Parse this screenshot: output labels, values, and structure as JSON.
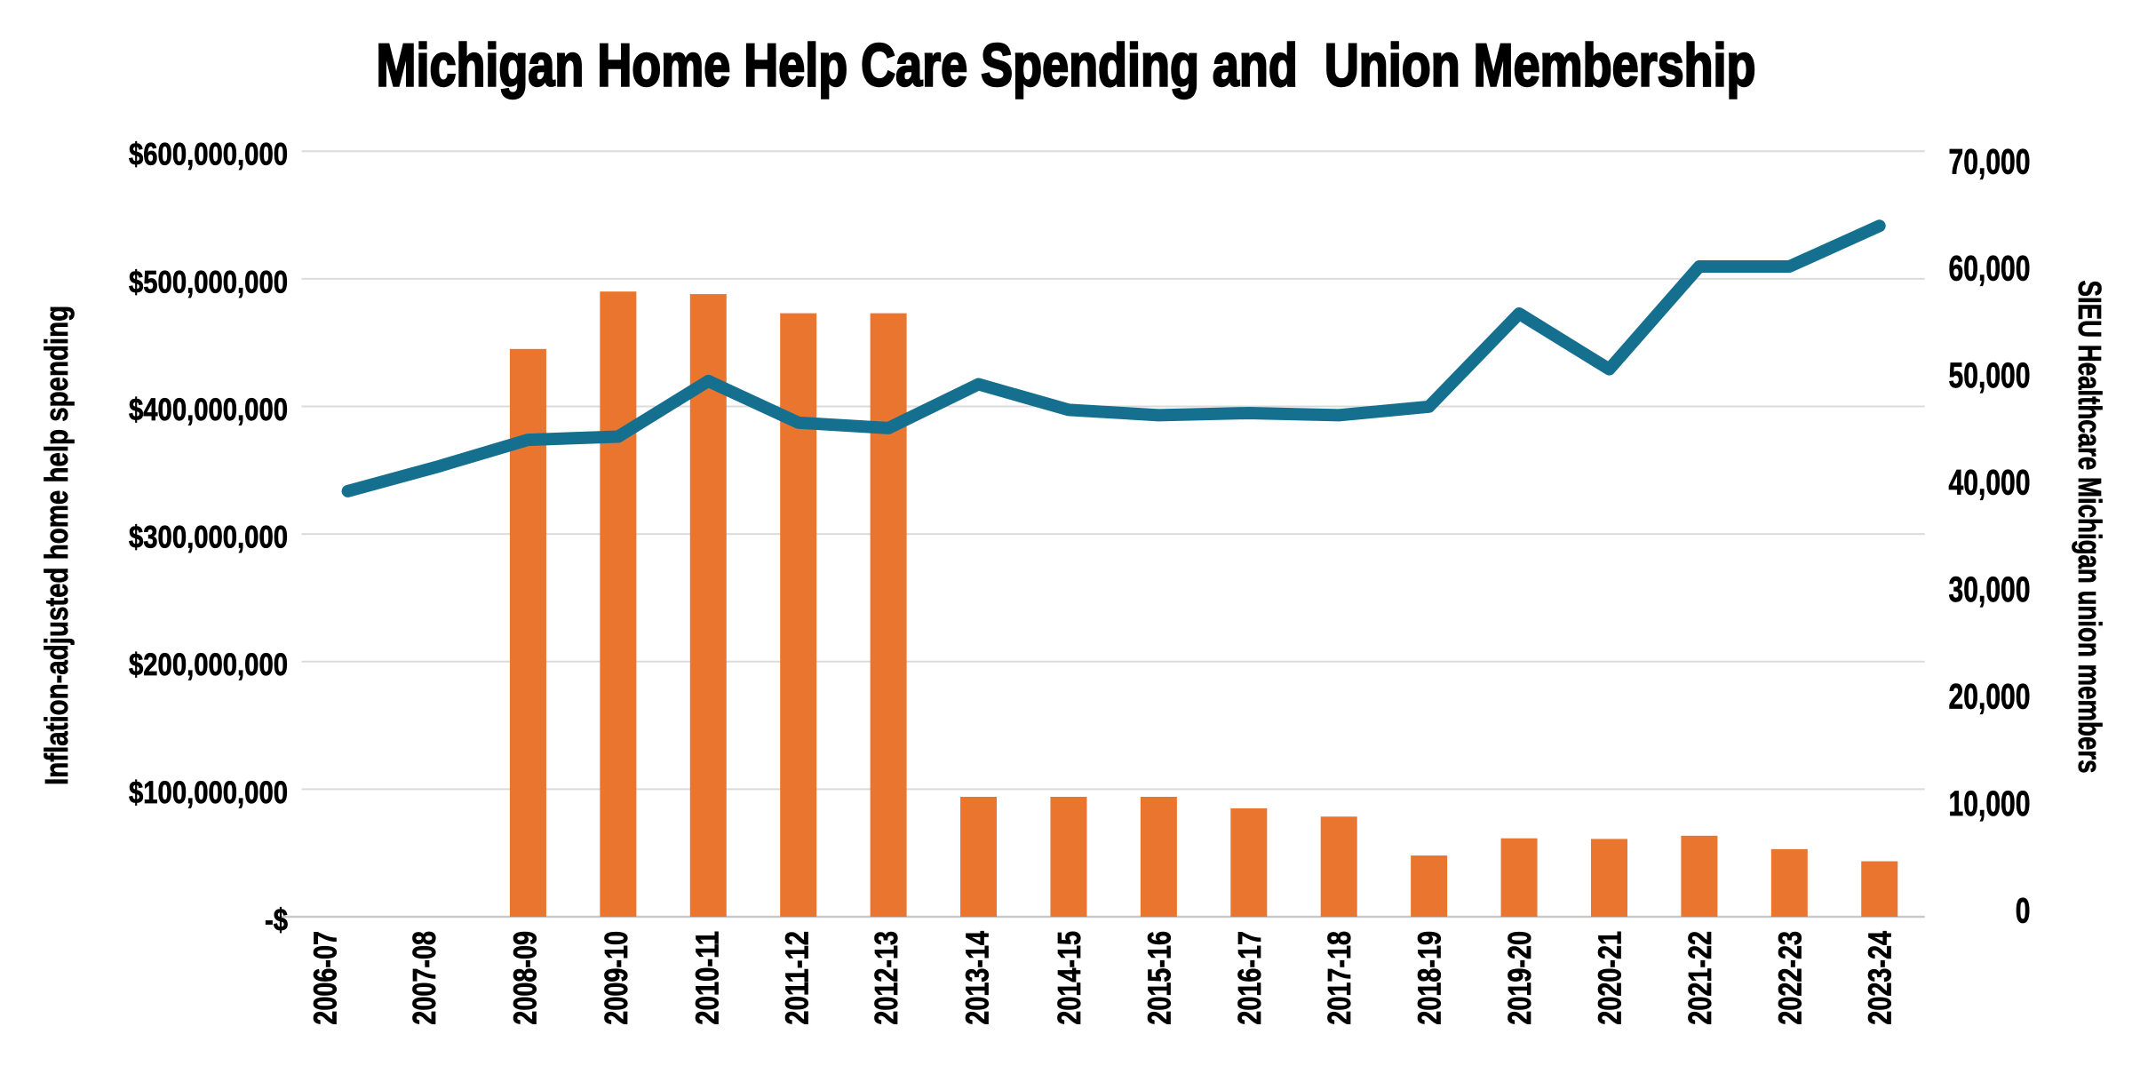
{
  "title": "Michigan Home Help Care Spending and  Union Membership",
  "left_axis": {
    "title": "Inflation-adjusted home help spending",
    "tick_labels": [
      "$600,000,000",
      "$500,000,000",
      "$400,000,000",
      "$300,000,000",
      "$200,000,000",
      "$100,000,000",
      "-$"
    ]
  },
  "right_axis": {
    "title": "SIEU Healthcare Michigan union members",
    "tick_labels": [
      "70,000",
      "60,000",
      "50,000",
      "40,000",
      "30,000",
      "20,000",
      "10,000",
      "0"
    ]
  },
  "colors": {
    "bar": "#e9752f",
    "line": "#15708f",
    "gridline": "#dbdbdb",
    "axis_line": "#c9c9c9",
    "text": "#000000",
    "background": "#ffffff"
  },
  "chart_data": {
    "type": "bar+line",
    "categories": [
      "2006-07",
      "2007-08",
      "2008-09",
      "2009-10",
      "2010-11",
      "2011-12",
      "2012-13",
      "2013-14",
      "2014-15",
      "2015-16",
      "2016-17",
      "2017-18",
      "2018-19",
      "2019-20",
      "2020-21",
      "2021-22",
      "2022-23",
      "2023-24"
    ],
    "series": [
      {
        "name": "Inflation-adjusted home help spending",
        "type": "bar",
        "axis": "left",
        "values": [
          null,
          null,
          445000000,
          490000000,
          488000000,
          473000000,
          473000000,
          94000000,
          94000000,
          94000000,
          85000000,
          78500000,
          48000000,
          61500000,
          61000000,
          63500000,
          53000000,
          43500000
        ]
      },
      {
        "name": "SIEU Healthcare Michigan union members",
        "type": "line",
        "axis": "right",
        "values": [
          39100,
          41400,
          43900,
          44200,
          49400,
          45500,
          45000,
          49100,
          46700,
          46200,
          46400,
          46200,
          47000,
          55700,
          50500,
          60100,
          60100,
          63900
        ]
      }
    ],
    "title": "Michigan Home Help Care Spending and  Union Membership",
    "xlabel": "",
    "ylabel_left": "Inflation-adjusted home help spending",
    "ylabel_right": "SIEU Healthcare Michigan union members",
    "ylim_left": [
      0,
      600000000
    ],
    "ylim_right": [
      0,
      70000
    ],
    "ytick_step_left": 100000000,
    "ytick_step_right": 10000,
    "grid": true,
    "legend": false
  }
}
